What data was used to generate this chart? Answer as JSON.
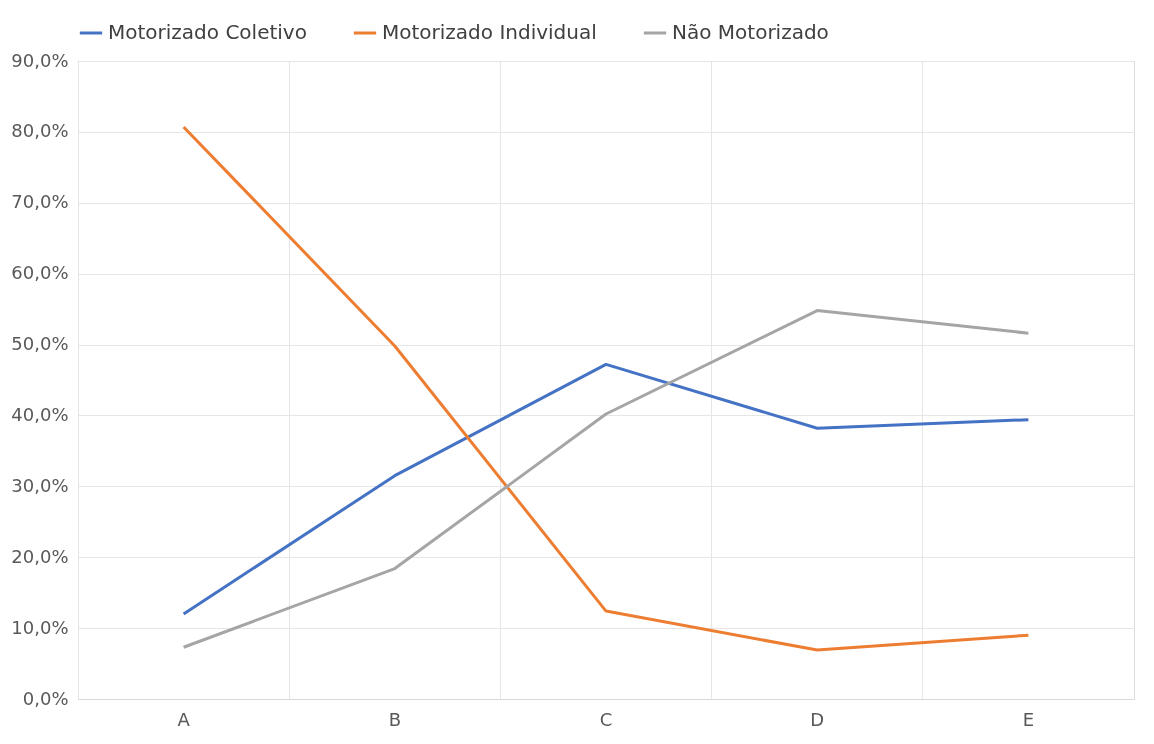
{
  "chart_data": {
    "type": "line",
    "categories": [
      "A",
      "B",
      "C",
      "D",
      "E"
    ],
    "series": [
      {
        "name": "Motorizado Coletivo",
        "color": "#4472c4",
        "values": [
          12.0,
          31.5,
          47.2,
          38.2,
          39.4
        ]
      },
      {
        "name": "Motorizado Individual",
        "color": "#ed7d31",
        "values": [
          80.7,
          49.8,
          12.4,
          6.9,
          9.0
        ]
      },
      {
        "name": "Não Motorizado",
        "color": "#a5a5a5",
        "values": [
          7.3,
          18.4,
          40.2,
          54.8,
          51.6
        ]
      }
    ],
    "ylim": [
      0,
      90
    ],
    "yticks": [
      {
        "value": 0,
        "label": "0,0%"
      },
      {
        "value": 10,
        "label": "10,0%"
      },
      {
        "value": 20,
        "label": "20,0%"
      },
      {
        "value": 30,
        "label": "30,0%"
      },
      {
        "value": 40,
        "label": "40,0%"
      },
      {
        "value": 50,
        "label": "50,0%"
      },
      {
        "value": 60,
        "label": "60,0%"
      },
      {
        "value": 70,
        "label": "70,0%"
      },
      {
        "value": 80,
        "label": "80,0%"
      },
      {
        "value": 90,
        "label": "90,0%"
      }
    ],
    "grid": true,
    "legend": "top",
    "marker": "none",
    "line_style": "solid"
  }
}
